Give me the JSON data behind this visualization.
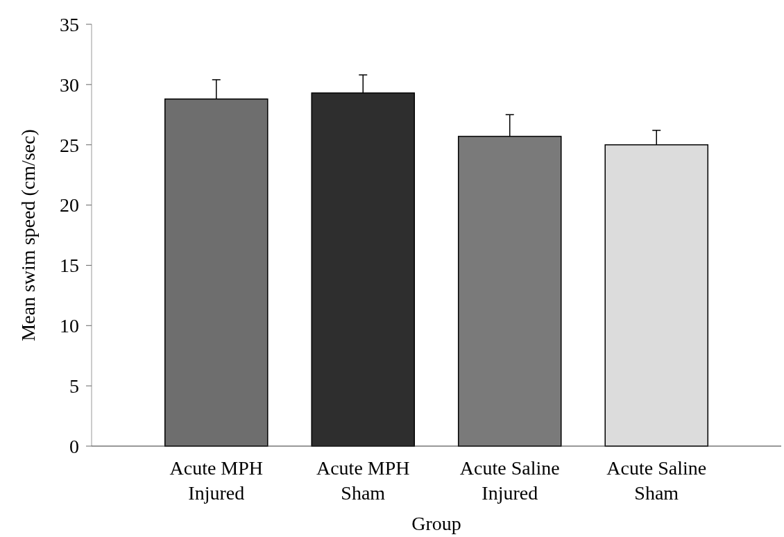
{
  "chart_data": {
    "type": "bar",
    "xlabel": "Group",
    "ylabel": "Mean swim speed (cm/sec)",
    "categories": [
      "Acute MPH\nInjured",
      "Acute MPH\nSham",
      "Acute Saline\nInjured",
      "Acute Saline\nSham"
    ],
    "values": [
      28.8,
      29.3,
      25.7,
      25.0
    ],
    "errors": [
      [
        28.8,
        30.4
      ],
      [
        29.3,
        30.8
      ],
      [
        25.7,
        27.5
      ],
      [
        25.0,
        26.2
      ]
    ],
    "colors": [
      "#6e6e6e",
      "#2e2e2e",
      "#7a7a7a",
      "#dcdcdc"
    ],
    "ylim": [
      0,
      35
    ],
    "yticks": [
      0,
      5,
      10,
      15,
      20,
      25,
      30,
      35
    ]
  }
}
